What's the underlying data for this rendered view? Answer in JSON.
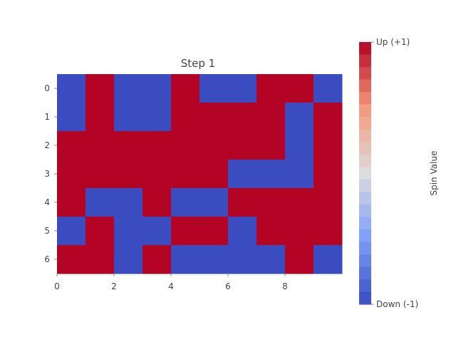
{
  "chart_data": {
    "type": "heatmap",
    "title": "Step 1",
    "xlabel": "",
    "ylabel": "",
    "x_tick_labels": [
      "0",
      "2",
      "4",
      "6",
      "8"
    ],
    "x_tick_positions": [
      0,
      2,
      4,
      6,
      8
    ],
    "y_tick_labels": [
      "0",
      "1",
      "2",
      "3",
      "4",
      "5",
      "6"
    ],
    "rows": 7,
    "cols": 10,
    "values": [
      [
        -1,
        1,
        -1,
        -1,
        1,
        -1,
        -1,
        1,
        1,
        -1
      ],
      [
        -1,
        1,
        -1,
        -1,
        1,
        1,
        1,
        1,
        -1,
        1
      ],
      [
        1,
        1,
        1,
        1,
        1,
        1,
        1,
        1,
        -1,
        1
      ],
      [
        1,
        1,
        1,
        1,
        1,
        1,
        -1,
        -1,
        -1,
        1
      ],
      [
        1,
        -1,
        -1,
        1,
        -1,
        -1,
        1,
        1,
        1,
        1
      ],
      [
        -1,
        1,
        -1,
        -1,
        1,
        1,
        -1,
        1,
        1,
        1
      ],
      [
        1,
        1,
        -1,
        1,
        -1,
        -1,
        -1,
        -1,
        1,
        -1
      ]
    ],
    "colormap": "coolwarm",
    "vmin": -1,
    "vmax": 1,
    "colors": {
      "up": "#b40426",
      "down": "#3b4cc0"
    },
    "colorbar": {
      "label": "Spin Value",
      "tick_labels": [
        "Up (+1)",
        "Down (-1)"
      ],
      "tick_values": [
        1,
        -1
      ],
      "segments": 21
    },
    "grid": false
  }
}
